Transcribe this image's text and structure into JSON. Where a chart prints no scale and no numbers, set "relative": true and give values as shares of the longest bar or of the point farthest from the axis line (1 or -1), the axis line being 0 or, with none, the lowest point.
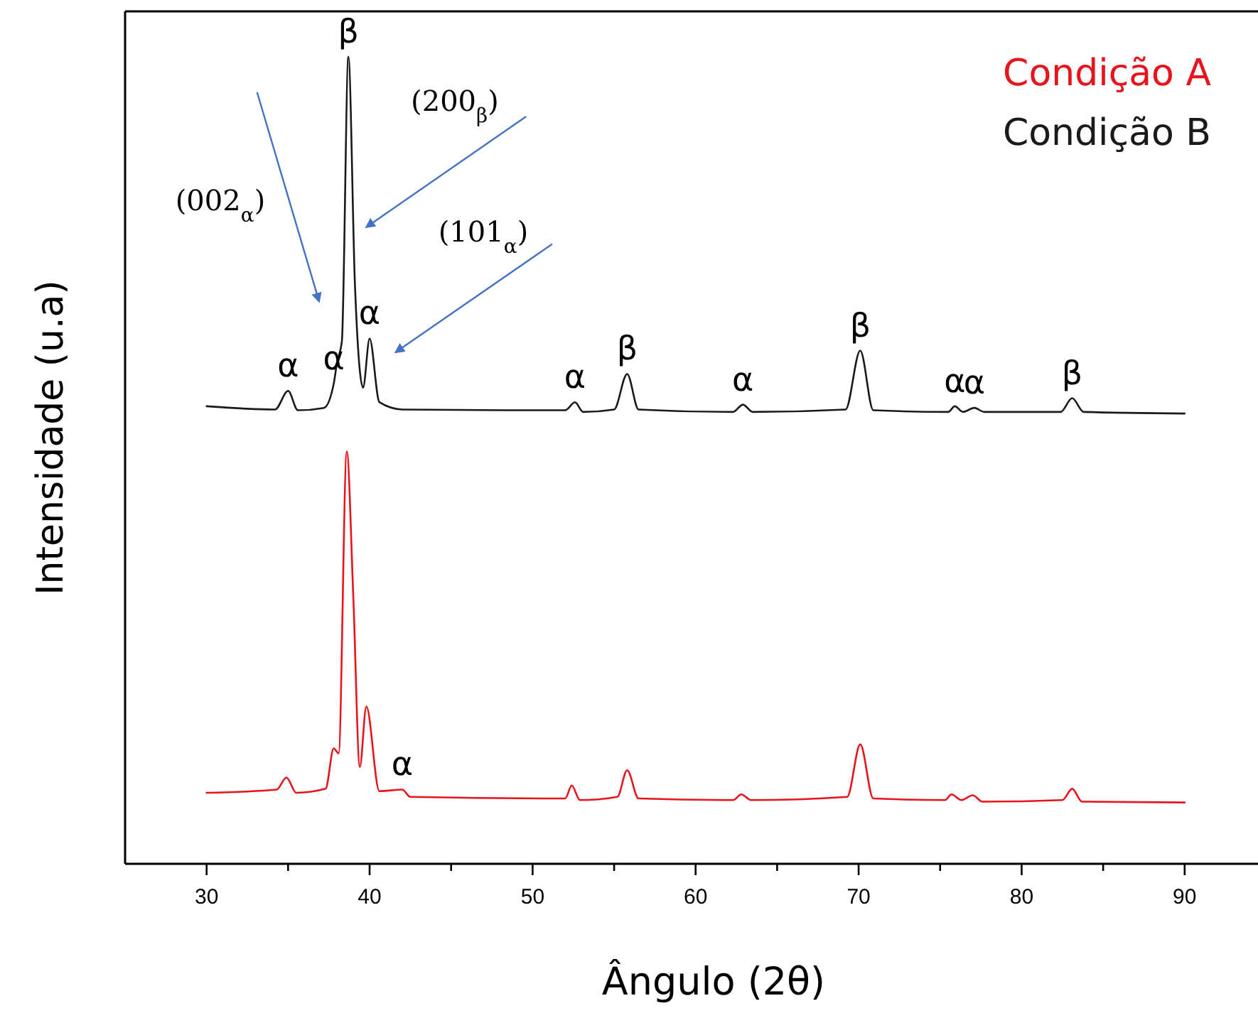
{
  "chart_data": {
    "type": "line",
    "relative": true,
    "xlabel": "Ângulo (2θ)",
    "ylabel": "Intensidade (u.a)",
    "xlim": [
      25,
      94.5
    ],
    "xticks": [
      30,
      {
        "value": 35,
        "label": null
      },
      40,
      {
        "value": 45,
        "label": null
      },
      50,
      {
        "value": 55,
        "label": null
      },
      60,
      {
        "value": 65,
        "label": null
      },
      70,
      {
        "value": 75,
        "label": null
      },
      80,
      {
        "value": 85,
        "label": null
      },
      90
    ],
    "legend": "top right",
    "grid": false,
    "marker": "none",
    "line_style": "solid",
    "series": [
      {
        "name": "Condição A",
        "color": "#e8141c",
        "x": [
          30.0,
          34.3,
          34.9,
          35.5,
          37.3,
          37.8,
          38.1,
          38.6,
          39.0,
          39.4,
          39.8,
          40.6,
          42.0,
          42.5,
          52.0,
          52.4,
          52.9,
          55.2,
          55.8,
          56.5,
          62.3,
          62.8,
          63.4,
          69.3,
          70.1,
          70.9,
          75.3,
          75.7,
          76.3,
          77.0,
          77.6,
          82.5,
          83.1,
          83.7,
          90.0
        ],
        "values": [
          0.088,
          0.092,
          0.107,
          0.088,
          0.093,
          0.143,
          0.137,
          0.511,
          0.331,
          0.12,
          0.195,
          0.09,
          0.092,
          0.083,
          0.081,
          0.097,
          0.079,
          0.083,
          0.116,
          0.081,
          0.079,
          0.086,
          0.079,
          0.083,
          0.148,
          0.081,
          0.079,
          0.086,
          0.079,
          0.085,
          0.077,
          0.079,
          0.093,
          0.077,
          0.076
        ]
      },
      {
        "name": "Condição B",
        "color": "#1a1a1a",
        "x": [
          30.0,
          34.2,
          35.0,
          35.6,
          37.2,
          37.8,
          38.0,
          38.3,
          38.7,
          39.1,
          39.6,
          40.0,
          40.6,
          42.0,
          52.0,
          52.6,
          53.1,
          55.0,
          55.8,
          56.5,
          62.3,
          62.9,
          63.5,
          69.2,
          70.1,
          70.9,
          75.5,
          75.9,
          76.4,
          77.1,
          77.7,
          82.4,
          83.1,
          83.8,
          90.0
        ],
        "values": [
          0.567,
          0.563,
          0.586,
          0.562,
          0.565,
          0.595,
          0.621,
          0.648,
          1.0,
          0.718,
          0.59,
          0.651,
          0.572,
          0.563,
          0.562,
          0.572,
          0.56,
          0.563,
          0.607,
          0.563,
          0.56,
          0.569,
          0.56,
          0.563,
          0.636,
          0.562,
          0.56,
          0.567,
          0.56,
          0.565,
          0.56,
          0.56,
          0.577,
          0.56,
          0.558
        ]
      }
    ],
    "annotations": [
      {
        "text": "α",
        "x": 35.0,
        "y": 0.586
      },
      {
        "text": "α",
        "x": 37.8,
        "y": 0.595
      },
      {
        "text": "β",
        "x": 38.7,
        "y": 1.0
      },
      {
        "text": "α",
        "x": 40.0,
        "y": 0.651
      },
      {
        "text": "α",
        "x": 52.6,
        "y": 0.572
      },
      {
        "text": "β",
        "x": 55.8,
        "y": 0.607
      },
      {
        "text": "α",
        "x": 62.9,
        "y": 0.569
      },
      {
        "text": "β",
        "x": 70.1,
        "y": 0.636
      },
      {
        "text": "α",
        "x": 75.9,
        "y": 0.567
      },
      {
        "text": "α",
        "x": 77.1,
        "y": 0.565
      },
      {
        "text": "β",
        "x": 83.1,
        "y": 0.577
      },
      {
        "text": "α",
        "x": 42.0,
        "y": 0.092
      },
      "(002$_{α}$)",
      "(200$_{β}$)",
      "(101$_{α}$)"
    ]
  }
}
